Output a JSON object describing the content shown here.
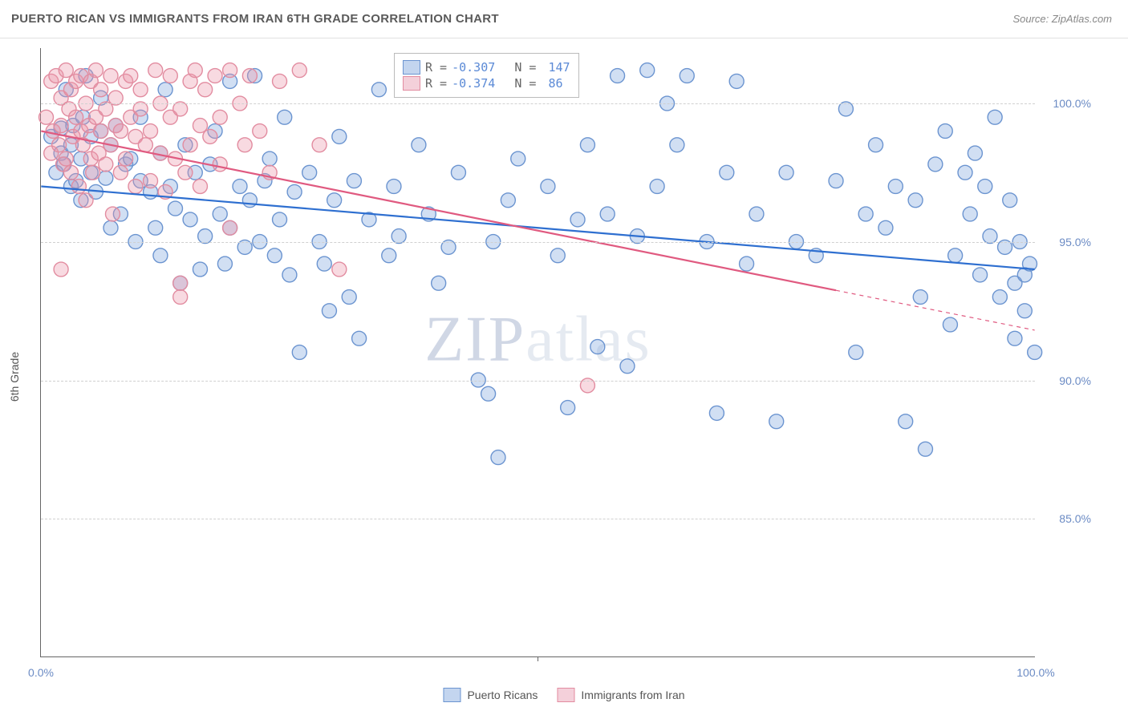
{
  "header": {
    "title": "PUERTO RICAN VS IMMIGRANTS FROM IRAN 6TH GRADE CORRELATION CHART",
    "source": "Source: ZipAtlas.com"
  },
  "chart": {
    "type": "scatter",
    "ylabel": "6th Grade",
    "watermark": "ZIPatlas",
    "xlim": [
      0,
      100
    ],
    "ylim": [
      80,
      102
    ],
    "yticks": [
      {
        "value": 85,
        "label": "85.0%"
      },
      {
        "value": 90,
        "label": "90.0%"
      },
      {
        "value": 95,
        "label": "95.0%"
      },
      {
        "value": 100,
        "label": "100.0%"
      }
    ],
    "xticks": [
      {
        "value": 0,
        "label": "0.0%"
      },
      {
        "value": 50,
        "label": ""
      },
      {
        "value": 100,
        "label": "100.0%"
      }
    ],
    "background_color": "#ffffff",
    "grid_color": "#d0d0d0",
    "axis_color": "#666666",
    "marker_radius": 9,
    "marker_stroke_width": 1.4,
    "trend_line_width": 2.2,
    "series": [
      {
        "name": "Puerto Ricans",
        "fill_color": "rgba(124,162,220,0.35)",
        "stroke_color": "#6b94d0",
        "line_color": "#2e6fd0",
        "swatch_fill": "#c3d5ef",
        "swatch_border": "#6b94d0",
        "R": "-0.307",
        "N": "147",
        "trend": {
          "x1": 0,
          "y1": 97.0,
          "x2": 100,
          "y2": 94.0,
          "solid_until": 100
        },
        "points": [
          [
            1,
            98.8
          ],
          [
            1.5,
            97.5
          ],
          [
            2,
            98.2
          ],
          [
            2,
            99.1
          ],
          [
            2.3,
            97.8
          ],
          [
            2.5,
            100.5
          ],
          [
            3,
            98.5
          ],
          [
            3,
            97.0
          ],
          [
            3.2,
            99.2
          ],
          [
            3.5,
            97.2
          ],
          [
            4,
            98.0
          ],
          [
            4,
            96.5
          ],
          [
            4.2,
            99.5
          ],
          [
            4.5,
            101.0
          ],
          [
            5,
            97.5
          ],
          [
            5,
            98.8
          ],
          [
            5.5,
            96.8
          ],
          [
            6,
            99.0
          ],
          [
            6,
            100.2
          ],
          [
            6.5,
            97.3
          ],
          [
            7,
            98.5
          ],
          [
            7,
            95.5
          ],
          [
            7.5,
            99.2
          ],
          [
            8,
            96.0
          ],
          [
            8.5,
            97.8
          ],
          [
            9,
            98.0
          ],
          [
            9.5,
            95.0
          ],
          [
            10,
            99.5
          ],
          [
            10,
            97.2
          ],
          [
            11,
            96.8
          ],
          [
            11.5,
            95.5
          ],
          [
            12,
            98.2
          ],
          [
            12,
            94.5
          ],
          [
            12.5,
            100.5
          ],
          [
            13,
            97.0
          ],
          [
            13.5,
            96.2
          ],
          [
            14,
            93.5
          ],
          [
            14.5,
            98.5
          ],
          [
            15,
            95.8
          ],
          [
            15.5,
            97.5
          ],
          [
            16,
            94.0
          ],
          [
            16.5,
            95.2
          ],
          [
            17,
            97.8
          ],
          [
            17.5,
            99.0
          ],
          [
            18,
            96.0
          ],
          [
            18.5,
            94.2
          ],
          [
            19,
            100.8
          ],
          [
            19,
            95.5
          ],
          [
            20,
            97.0
          ],
          [
            20.5,
            94.8
          ],
          [
            21,
            96.5
          ],
          [
            21.5,
            101.0
          ],
          [
            22,
            95.0
          ],
          [
            22.5,
            97.2
          ],
          [
            23,
            98.0
          ],
          [
            23.5,
            94.5
          ],
          [
            24,
            95.8
          ],
          [
            24.5,
            99.5
          ],
          [
            25,
            93.8
          ],
          [
            25.5,
            96.8
          ],
          [
            26,
            91.0
          ],
          [
            27,
            97.5
          ],
          [
            28,
            95.0
          ],
          [
            28.5,
            94.2
          ],
          [
            29,
            92.5
          ],
          [
            29.5,
            96.5
          ],
          [
            30,
            98.8
          ],
          [
            31,
            93.0
          ],
          [
            31.5,
            97.2
          ],
          [
            32,
            91.5
          ],
          [
            33,
            95.8
          ],
          [
            34,
            100.5
          ],
          [
            35,
            94.5
          ],
          [
            35.5,
            97.0
          ],
          [
            36,
            95.2
          ],
          [
            37,
            101.2
          ],
          [
            38,
            98.5
          ],
          [
            39,
            96.0
          ],
          [
            40,
            93.5
          ],
          [
            41,
            94.8
          ],
          [
            42,
            97.5
          ],
          [
            43,
            101.0
          ],
          [
            44,
            90.0
          ],
          [
            45,
            89.5
          ],
          [
            45.5,
            95.0
          ],
          [
            46,
            87.2
          ],
          [
            47,
            96.5
          ],
          [
            48,
            98.0
          ],
          [
            49,
            100.8
          ],
          [
            50,
            101.2
          ],
          [
            51,
            97.0
          ],
          [
            52,
            94.5
          ],
          [
            53,
            89.0
          ],
          [
            54,
            95.8
          ],
          [
            55,
            98.5
          ],
          [
            56,
            91.2
          ],
          [
            57,
            96.0
          ],
          [
            58,
            101.0
          ],
          [
            59,
            90.5
          ],
          [
            60,
            95.2
          ],
          [
            61,
            101.2
          ],
          [
            62,
            97.0
          ],
          [
            63,
            100.0
          ],
          [
            64,
            98.5
          ],
          [
            65,
            101.0
          ],
          [
            67,
            95.0
          ],
          [
            68,
            88.8
          ],
          [
            69,
            97.5
          ],
          [
            70,
            100.8
          ],
          [
            71,
            94.2
          ],
          [
            72,
            96.0
          ],
          [
            74,
            88.5
          ],
          [
            75,
            97.5
          ],
          [
            76,
            95.0
          ],
          [
            78,
            94.5
          ],
          [
            80,
            97.2
          ],
          [
            81,
            99.8
          ],
          [
            82,
            91.0
          ],
          [
            83,
            96.0
          ],
          [
            84,
            98.5
          ],
          [
            85,
            95.5
          ],
          [
            86,
            97.0
          ],
          [
            87,
            88.5
          ],
          [
            88,
            96.5
          ],
          [
            88.5,
            93.0
          ],
          [
            89,
            87.5
          ],
          [
            90,
            97.8
          ],
          [
            91,
            99.0
          ],
          [
            91.5,
            92.0
          ],
          [
            92,
            94.5
          ],
          [
            93,
            97.5
          ],
          [
            93.5,
            96.0
          ],
          [
            94,
            98.2
          ],
          [
            94.5,
            93.8
          ],
          [
            95,
            97.0
          ],
          [
            95.5,
            95.2
          ],
          [
            96,
            99.5
          ],
          [
            96.5,
            93.0
          ],
          [
            97,
            94.8
          ],
          [
            97.5,
            96.5
          ],
          [
            98,
            91.5
          ],
          [
            98,
            93.5
          ],
          [
            98.5,
            95.0
          ],
          [
            99,
            93.8
          ],
          [
            99,
            92.5
          ],
          [
            99.5,
            94.2
          ],
          [
            100,
            91.0
          ]
        ]
      },
      {
        "name": "Immigrants from Iran",
        "fill_color": "rgba(236,150,170,0.35)",
        "stroke_color": "#e28ca0",
        "line_color": "#e05a80",
        "swatch_fill": "#f4d0da",
        "swatch_border": "#e28ca0",
        "R": "-0.374",
        "N": "86",
        "trend": {
          "x1": 0,
          "y1": 99.0,
          "x2": 100,
          "y2": 91.8,
          "solid_until": 80
        },
        "points": [
          [
            0.5,
            99.5
          ],
          [
            1,
            100.8
          ],
          [
            1,
            98.2
          ],
          [
            1.2,
            99.0
          ],
          [
            1.5,
            101.0
          ],
          [
            1.8,
            98.5
          ],
          [
            2,
            100.2
          ],
          [
            2,
            99.2
          ],
          [
            2.2,
            97.8
          ],
          [
            2.5,
            101.2
          ],
          [
            2.5,
            98.0
          ],
          [
            2.8,
            99.8
          ],
          [
            3,
            100.5
          ],
          [
            3,
            97.5
          ],
          [
            3.2,
            98.8
          ],
          [
            3.5,
            99.5
          ],
          [
            3.5,
            100.8
          ],
          [
            3.8,
            97.0
          ],
          [
            4,
            99.0
          ],
          [
            4,
            101.0
          ],
          [
            4.2,
            98.5
          ],
          [
            4.5,
            100.0
          ],
          [
            4.5,
            96.5
          ],
          [
            4.8,
            99.2
          ],
          [
            5,
            100.8
          ],
          [
            5,
            98.0
          ],
          [
            5.2,
            97.5
          ],
          [
            5.5,
            99.5
          ],
          [
            5.5,
            101.2
          ],
          [
            5.8,
            98.2
          ],
          [
            6,
            99.0
          ],
          [
            6,
            100.5
          ],
          [
            6.5,
            97.8
          ],
          [
            6.5,
            99.8
          ],
          [
            7,
            101.0
          ],
          [
            7,
            98.5
          ],
          [
            7.2,
            96.0
          ],
          [
            7.5,
            99.2
          ],
          [
            7.5,
            100.2
          ],
          [
            8,
            97.5
          ],
          [
            8,
            99.0
          ],
          [
            8.5,
            100.8
          ],
          [
            8.5,
            98.0
          ],
          [
            9,
            99.5
          ],
          [
            9,
            101.0
          ],
          [
            9.5,
            98.8
          ],
          [
            9.5,
            97.0
          ],
          [
            10,
            99.8
          ],
          [
            10,
            100.5
          ],
          [
            10.5,
            98.5
          ],
          [
            11,
            97.2
          ],
          [
            11,
            99.0
          ],
          [
            11.5,
            101.2
          ],
          [
            12,
            98.2
          ],
          [
            12,
            100.0
          ],
          [
            12.5,
            96.8
          ],
          [
            13,
            99.5
          ],
          [
            13,
            101.0
          ],
          [
            13.5,
            98.0
          ],
          [
            14,
            93.5
          ],
          [
            14,
            99.8
          ],
          [
            14.5,
            97.5
          ],
          [
            15,
            100.8
          ],
          [
            15,
            98.5
          ],
          [
            15.5,
            101.2
          ],
          [
            16,
            97.0
          ],
          [
            16,
            99.2
          ],
          [
            16.5,
            100.5
          ],
          [
            17,
            98.8
          ],
          [
            17.5,
            101.0
          ],
          [
            18,
            97.8
          ],
          [
            18,
            99.5
          ],
          [
            19,
            101.2
          ],
          [
            19,
            95.5
          ],
          [
            20,
            100.0
          ],
          [
            20.5,
            98.5
          ],
          [
            2,
            94.0
          ],
          [
            21,
            101.0
          ],
          [
            22,
            99.0
          ],
          [
            23,
            97.5
          ],
          [
            24,
            100.8
          ],
          [
            14,
            93.0
          ],
          [
            26,
            101.2
          ],
          [
            28,
            98.5
          ],
          [
            30,
            94.0
          ],
          [
            55,
            89.8
          ]
        ]
      }
    ],
    "legend_bottom": [
      {
        "label": "Puerto Ricans",
        "series": 0
      },
      {
        "label": "Immigrants from Iran",
        "series": 1
      }
    ]
  }
}
